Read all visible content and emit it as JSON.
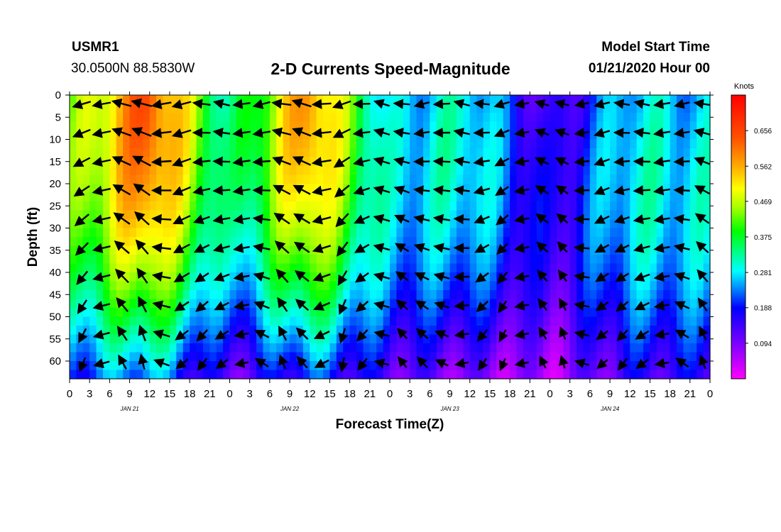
{
  "header": {
    "station": "USMR1",
    "coordinates": "30.0500N 88.5830W",
    "title": "2-D Currents Speed-Magnitude",
    "model_start_label": "Model Start Time",
    "model_start_value": "01/21/2020 Hour 00"
  },
  "colorbar": {
    "unit": "Knots",
    "ticks": [
      "0.656",
      "0.562",
      "0.469",
      "0.375",
      "0.281",
      "0.188",
      "0.094"
    ],
    "colors": [
      "#ff00ff",
      "#7f00ff",
      "#0000ff",
      "#0080ff",
      "#00ffff",
      "#00ff80",
      "#00ff00",
      "#80ff00",
      "#ffff00",
      "#ffaa00",
      "#ff5500",
      "#ff0000"
    ]
  },
  "chart_data": {
    "type": "heatmap",
    "title": "2-D Currents Speed-Magnitude",
    "xlabel": "Forecast Time(Z)",
    "ylabel": "Depth (ft)",
    "x_tick_labels": [
      "0",
      "3",
      "6",
      "9",
      "12",
      "15",
      "18",
      "21",
      "0",
      "3",
      "6",
      "9",
      "12",
      "15",
      "18",
      "21",
      "0",
      "3",
      "6",
      "9",
      "12",
      "15",
      "18",
      "21",
      "0",
      "3",
      "6",
      "9",
      "12",
      "15",
      "18",
      "21",
      "0"
    ],
    "day_labels": [
      "JAN 21",
      "JAN 22",
      "JAN 23",
      "JAN 24"
    ],
    "y_tick_labels": [
      "0",
      "5",
      "10",
      "15",
      "20",
      "25",
      "30",
      "35",
      "40",
      "45",
      "50",
      "55",
      "60"
    ],
    "xlim_hours": [
      0,
      96
    ],
    "ylim_ft": [
      0,
      64
    ],
    "y_inverted": true,
    "colorbar_range_knots": [
      0.0,
      0.75
    ],
    "colorbar_unit": "Knots",
    "approx_speed_by_time": [
      {
        "hour": 0,
        "surface": 0.4,
        "bottom": 0.2
      },
      {
        "hour": 12,
        "surface": 0.65,
        "bottom": 0.25
      },
      {
        "hour": 24,
        "surface": 0.3,
        "bottom": 0.1
      },
      {
        "hour": 36,
        "surface": 0.6,
        "bottom": 0.2
      },
      {
        "hour": 48,
        "surface": 0.25,
        "bottom": 0.12
      },
      {
        "hour": 60,
        "surface": 0.3,
        "bottom": 0.08
      },
      {
        "hour": 72,
        "surface": 0.1,
        "bottom": 0.05
      },
      {
        "hour": 84,
        "surface": 0.28,
        "bottom": 0.14
      },
      {
        "hour": 96,
        "surface": 0.25,
        "bottom": 0.15
      }
    ]
  }
}
